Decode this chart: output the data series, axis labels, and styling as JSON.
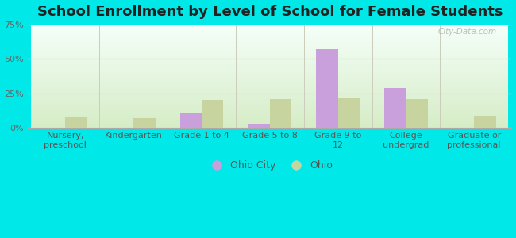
{
  "title": "School Enrollment by Level of School for Female Students",
  "categories": [
    "Nursery,\npreschool",
    "Kindergarten",
    "Grade 1 to 4",
    "Grade 5 to 8",
    "Grade 9 to\n12",
    "College\nundergrad",
    "Graduate or\nprofessional"
  ],
  "ohio_city": [
    0,
    0,
    11,
    3,
    57,
    29,
    0
  ],
  "ohio": [
    8,
    7,
    20,
    21,
    22,
    21,
    9
  ],
  "ohio_city_color": "#c9a0dc",
  "ohio_color": "#c8d4a0",
  "background_color": "#00e8e8",
  "ylim": [
    0,
    75
  ],
  "yticks": [
    0,
    25,
    50,
    75
  ],
  "ytick_labels": [
    "0%",
    "25%",
    "50%",
    "75%"
  ],
  "bar_width": 0.32,
  "legend_ohio_city": "Ohio City",
  "legend_ohio": "Ohio",
  "watermark": "City-Data.com",
  "title_fontsize": 13,
  "tick_fontsize": 8,
  "legend_fontsize": 9,
  "plot_grad_top": "#f5fffa",
  "plot_grad_bottom": "#d8eec8"
}
